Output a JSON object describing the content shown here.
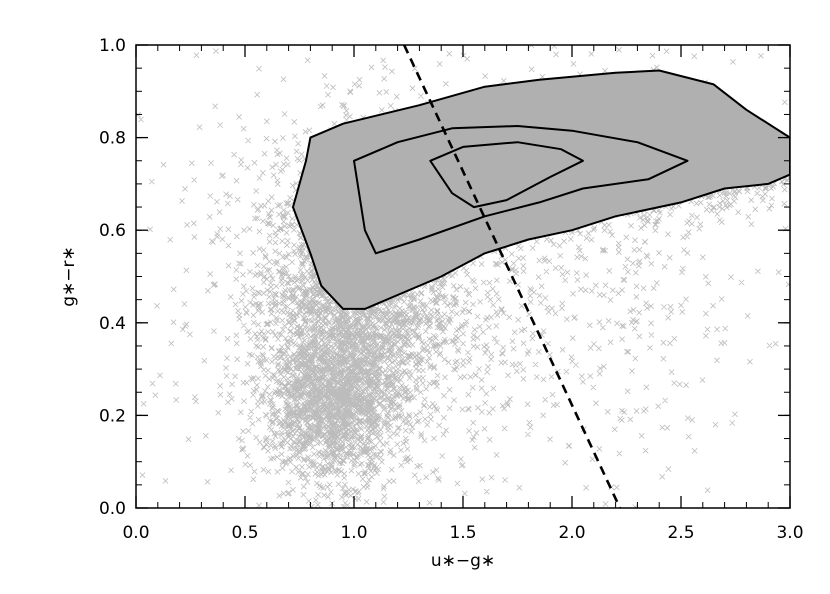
{
  "chart_data": {
    "type": "scatter",
    "title": "",
    "xlabel": "u∗−g∗",
    "ylabel": "g∗−r∗",
    "xlim": [
      0.0,
      3.0
    ],
    "ylim": [
      0.0,
      1.0
    ],
    "x_ticks": [
      "0.0",
      "0.5",
      "1.0",
      "1.5",
      "2.0",
      "2.5",
      "3.0"
    ],
    "y_ticks": [
      "0.0",
      "0.2",
      "0.4",
      "0.6",
      "0.8",
      "1.0"
    ],
    "point_color": "#b0b0b0",
    "point_marker": "x",
    "scatter_density": [
      {
        "x": 1.0,
        "y": 0.45,
        "sx": 0.22,
        "sy": 0.14,
        "w": 0.3
      },
      {
        "x": 0.9,
        "y": 0.22,
        "sx": 0.15,
        "sy": 0.08,
        "w": 0.18
      },
      {
        "x": 1.7,
        "y": 0.72,
        "sx": 0.35,
        "sy": 0.06,
        "w": 0.28
      },
      {
        "x": 2.5,
        "y": 0.74,
        "sx": 0.3,
        "sy": 0.05,
        "w": 0.1
      },
      {
        "x": 1.5,
        "y": 0.5,
        "sx": 0.7,
        "sy": 0.25,
        "w": 0.14
      }
    ],
    "contours": [
      {
        "level": "outer",
        "points": [
          [
            0.72,
            0.65
          ],
          [
            0.78,
            0.75
          ],
          [
            0.8,
            0.8
          ],
          [
            0.95,
            0.83
          ],
          [
            1.3,
            0.87
          ],
          [
            1.6,
            0.91
          ],
          [
            1.85,
            0.925
          ],
          [
            2.2,
            0.94
          ],
          [
            2.4,
            0.945
          ],
          [
            2.65,
            0.915
          ],
          [
            2.8,
            0.86
          ],
          [
            3.0,
            0.8
          ],
          [
            3.0,
            0.72
          ],
          [
            2.9,
            0.7
          ],
          [
            2.7,
            0.69
          ],
          [
            2.5,
            0.66
          ],
          [
            2.35,
            0.645
          ],
          [
            2.2,
            0.63
          ],
          [
            2.0,
            0.6
          ],
          [
            1.8,
            0.58
          ],
          [
            1.6,
            0.55
          ],
          [
            1.4,
            0.5
          ],
          [
            1.2,
            0.46
          ],
          [
            1.05,
            0.43
          ],
          [
            0.95,
            0.43
          ],
          [
            0.85,
            0.48
          ],
          [
            0.8,
            0.55
          ],
          [
            0.72,
            0.65
          ]
        ]
      },
      {
        "level": "middle",
        "points": [
          [
            1.0,
            0.75
          ],
          [
            1.2,
            0.79
          ],
          [
            1.45,
            0.82
          ],
          [
            1.75,
            0.825
          ],
          [
            2.0,
            0.815
          ],
          [
            2.3,
            0.79
          ],
          [
            2.53,
            0.75
          ],
          [
            2.35,
            0.71
          ],
          [
            2.05,
            0.69
          ],
          [
            1.85,
            0.66
          ],
          [
            1.6,
            0.63
          ],
          [
            1.3,
            0.58
          ],
          [
            1.1,
            0.55
          ],
          [
            1.05,
            0.6
          ],
          [
            1.0,
            0.75
          ]
        ]
      },
      {
        "level": "inner",
        "points": [
          [
            1.35,
            0.75
          ],
          [
            1.5,
            0.78
          ],
          [
            1.75,
            0.79
          ],
          [
            1.95,
            0.775
          ],
          [
            2.05,
            0.75
          ],
          [
            1.9,
            0.715
          ],
          [
            1.7,
            0.665
          ],
          [
            1.55,
            0.65
          ],
          [
            1.45,
            0.68
          ],
          [
            1.35,
            0.75
          ]
        ]
      }
    ],
    "dividing_line": {
      "style": "dashed",
      "points": [
        [
          1.23,
          1.0
        ],
        [
          2.22,
          0.0
        ]
      ]
    },
    "grid": false,
    "legend": "none"
  }
}
